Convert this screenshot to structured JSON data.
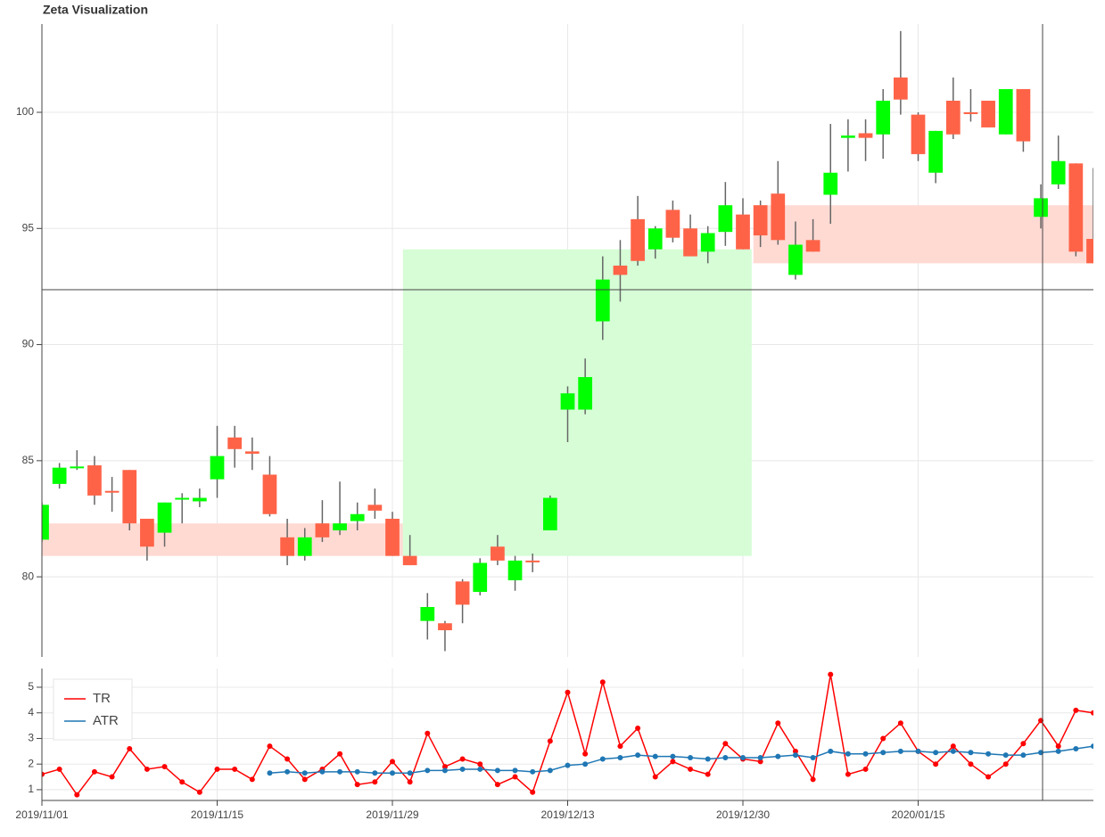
{
  "chart_data": [
    {
      "type": "candlestick",
      "title": "Zeta Visualization",
      "open": [
        81.6,
        84.0,
        84.7,
        84.8,
        83.7,
        84.6,
        82.5,
        81.9,
        83.35,
        83.25,
        84.2,
        86.0,
        85.4,
        84.4,
        81.7,
        80.9,
        82.3,
        82.0,
        82.4,
        83.1,
        82.5,
        80.9,
        78.1,
        78.0,
        79.8,
        79.35,
        81.3,
        79.85,
        80.7,
        82.0,
        87.2,
        87.2,
        91.0,
        93.4,
        95.4,
        94.1,
        95.8,
        95.0,
        94.0,
        94.85,
        95.6,
        96.0,
        96.5,
        93.0,
        94.5,
        96.45,
        98.9,
        99.1,
        99.05,
        101.5,
        99.9,
        97.4,
        100.5,
        100.0,
        100.5,
        99.05,
        101.0,
        95.5,
        96.9,
        97.8,
        94.55
      ],
      "high": [
        83.2,
        84.9,
        85.45,
        85.2,
        84.3,
        84.6,
        82.5,
        83.2,
        83.6,
        83.8,
        86.5,
        86.5,
        86.0,
        85.2,
        82.5,
        82.1,
        83.3,
        84.1,
        83.2,
        83.8,
        82.8,
        81.8,
        79.3,
        78.1,
        79.9,
        80.8,
        81.8,
        80.9,
        81.0,
        83.5,
        88.2,
        89.4,
        93.8,
        94.5,
        96.4,
        95.1,
        96.2,
        95.6,
        95.1,
        97.0,
        96.3,
        96.2,
        97.9,
        95.3,
        95.4,
        99.5,
        99.7,
        99.7,
        101.0,
        103.5,
        100.0,
        99.2,
        101.5,
        101.0,
        100.5,
        101.0,
        101.0,
        96.9,
        99.0,
        97.8,
        97.6
      ],
      "low": [
        81.5,
        83.8,
        84.6,
        83.1,
        82.8,
        82.0,
        80.7,
        81.3,
        82.3,
        83.0,
        83.4,
        84.7,
        84.6,
        82.6,
        80.5,
        80.7,
        81.5,
        81.8,
        82.0,
        82.5,
        80.9,
        80.5,
        77.3,
        76.8,
        78.0,
        79.2,
        80.5,
        79.4,
        80.2,
        82.0,
        85.8,
        87.0,
        90.2,
        91.85,
        93.4,
        93.7,
        94.4,
        93.8,
        93.5,
        94.25,
        94.1,
        94.2,
        94.3,
        92.8,
        94.0,
        95.2,
        97.45,
        97.9,
        98.0,
        99.9,
        97.9,
        96.95,
        98.85,
        99.6,
        99.35,
        99.05,
        98.3,
        95.0,
        96.7,
        93.8,
        93.5
      ],
      "close": [
        83.1,
        84.7,
        84.75,
        83.5,
        83.65,
        82.3,
        81.3,
        83.2,
        83.4,
        83.4,
        85.2,
        85.5,
        85.3,
        82.7,
        80.9,
        81.7,
        81.7,
        82.3,
        82.7,
        82.85,
        80.9,
        80.5,
        78.7,
        77.7,
        78.8,
        80.6,
        80.7,
        80.7,
        80.65,
        83.4,
        87.9,
        88.6,
        92.8,
        93.0,
        93.6,
        95.0,
        94.6,
        93.8,
        94.8,
        96.0,
        94.1,
        94.7,
        94.5,
        94.3,
        94.0,
        97.4,
        99.0,
        98.9,
        100.5,
        100.55,
        98.2,
        99.2,
        99.05,
        99.95,
        99.35,
        101.0,
        98.75,
        96.3,
        97.9,
        94.0,
        93.5
      ],
      "up_color": "#00ff00",
      "down_color": "#ff6347",
      "wick_color": "#666666",
      "zones": [
        {
          "x0": 0,
          "x1": 20.6,
          "y0": 80.9,
          "y1": 82.3,
          "color": "#ffdad3"
        },
        {
          "x0": 20.6,
          "x1": 40.5,
          "y0": 80.9,
          "y1": 94.1,
          "color": "#d6fdd6"
        },
        {
          "x0": 40.6,
          "x1": 60,
          "y0": 93.5,
          "y1": 96.0,
          "color": "#ffdad3"
        }
      ],
      "ylim": [
        76.55,
        103.8
      ],
      "yticks": [
        80,
        85,
        90,
        95,
        100
      ],
      "grid": true
    },
    {
      "type": "line",
      "categories": [
        "2019/11/01",
        null,
        null,
        null,
        null,
        null,
        null,
        null,
        null,
        null,
        "2019/11/15",
        null,
        null,
        null,
        null,
        null,
        null,
        null,
        null,
        null,
        "2019/11/29",
        null,
        null,
        null,
        null,
        null,
        null,
        null,
        null,
        null,
        "2019/12/13",
        null,
        null,
        null,
        null,
        null,
        null,
        null,
        null,
        null,
        "2019/12/30",
        null,
        null,
        null,
        null,
        null,
        null,
        null,
        null,
        null,
        "2020/01/15",
        null,
        null,
        null,
        null,
        null,
        null,
        null,
        null,
        null,
        null
      ],
      "series": [
        {
          "name": "TR",
          "color": "#ff0000",
          "values": [
            1.6,
            1.8,
            0.8,
            1.7,
            1.5,
            2.6,
            1.8,
            1.9,
            1.3,
            0.9,
            1.8,
            1.8,
            1.4,
            2.7,
            2.2,
            1.4,
            1.8,
            2.4,
            1.2,
            1.3,
            2.1,
            1.3,
            3.2,
            1.9,
            2.2,
            2.0,
            1.2,
            1.5,
            0.9,
            2.9,
            4.8,
            2.4,
            5.2,
            2.7,
            3.4,
            1.5,
            2.1,
            1.8,
            1.6,
            2.8,
            2.2,
            2.1,
            3.6,
            2.5,
            1.4,
            5.5,
            1.6,
            1.8,
            3.0,
            3.6,
            2.5,
            2.0,
            2.7,
            2.0,
            1.5,
            2.0,
            2.8,
            3.7,
            2.7,
            4.1,
            4.0
          ]
        },
        {
          "name": "ATR",
          "color": "#1f77b4",
          "values": [
            null,
            null,
            null,
            null,
            null,
            null,
            null,
            null,
            null,
            null,
            null,
            null,
            null,
            1.65,
            1.7,
            1.65,
            1.7,
            1.7,
            1.7,
            1.65,
            1.65,
            1.65,
            1.75,
            1.75,
            1.8,
            1.8,
            1.75,
            1.75,
            1.7,
            1.75,
            1.95,
            2.0,
            2.2,
            2.25,
            2.35,
            2.3,
            2.3,
            2.25,
            2.2,
            2.25,
            2.25,
            2.25,
            2.3,
            2.35,
            2.25,
            2.5,
            2.4,
            2.4,
            2.45,
            2.5,
            2.5,
            2.45,
            2.5,
            2.45,
            2.4,
            2.35,
            2.35,
            2.45,
            2.5,
            2.6,
            2.7
          ]
        }
      ],
      "ylim": [
        0.58,
        5.73
      ],
      "yticks": [
        1,
        2,
        3,
        4,
        5
      ],
      "grid": true,
      "legend": "top-left"
    }
  ]
}
